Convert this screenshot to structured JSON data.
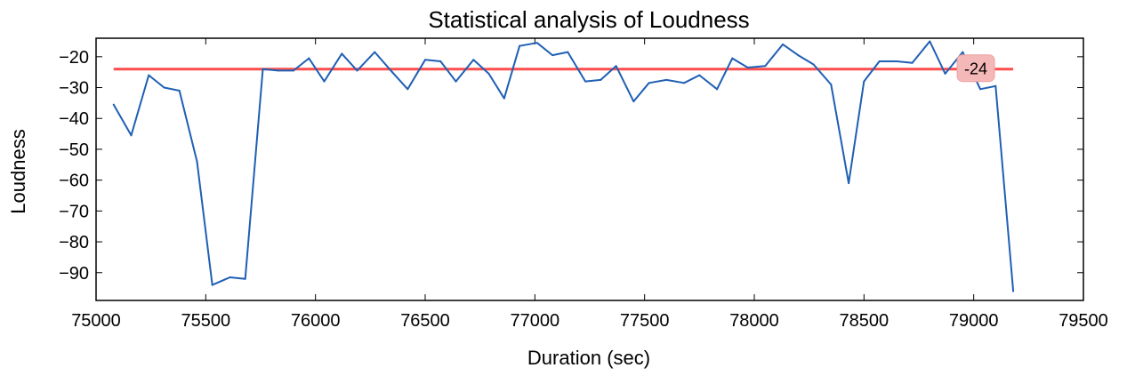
{
  "chart_data": {
    "type": "line",
    "title": "Statistical analysis of Loudness",
    "xlabel": "Duration (sec)",
    "ylabel": "Loudness",
    "xlim": [
      75000,
      79500
    ],
    "ylim": [
      -99,
      -14
    ],
    "xticks": [
      75000,
      75500,
      76000,
      76500,
      77000,
      77500,
      78000,
      78500,
      79000,
      79500
    ],
    "yticks": [
      -20,
      -30,
      -40,
      -50,
      -60,
      -70,
      -80,
      -90
    ],
    "grid": false,
    "series": [
      {
        "color": "#1f5fb4",
        "x": [
          75080,
          75160,
          75240,
          75310,
          75380,
          75460,
          75530,
          75610,
          75680,
          75760,
          75830,
          75900,
          75970,
          76040,
          76120,
          76190,
          76270,
          76350,
          76420,
          76500,
          76570,
          76640,
          76720,
          76790,
          76860,
          76930,
          77010,
          77080,
          77150,
          77230,
          77300,
          77370,
          77450,
          77520,
          77600,
          77680,
          77750,
          77830,
          77900,
          77970,
          78050,
          78130,
          78200,
          78270,
          78350,
          78430,
          78500,
          78570,
          78650,
          78720,
          78800,
          78870,
          78950,
          79030,
          79100,
          79180
        ],
        "values": [
          -35.5,
          -45.5,
          -26,
          -30,
          -31,
          -54,
          -94,
          -91.5,
          -92,
          -24,
          -24.5,
          -24.5,
          -20.5,
          -28,
          -19,
          -24.5,
          -18.5,
          -25,
          -30.5,
          -21,
          -21.5,
          -28,
          -21,
          -25.5,
          -33.5,
          -16.5,
          -15.5,
          -19.5,
          -18.5,
          -28,
          -27.5,
          -23,
          -34.5,
          -28.5,
          -27.5,
          -28.5,
          -26,
          -30.5,
          -20.5,
          -23.5,
          -23,
          -16,
          -19.5,
          -22.5,
          -29,
          -61,
          -28,
          -21.5,
          -21.5,
          -22,
          -15,
          -25.5,
          -18.5,
          -30.5,
          -29.5,
          -96
        ]
      }
    ],
    "reference_line": {
      "value": -24,
      "label": "-24",
      "color": "#ff4d4d",
      "x_start": 75080,
      "x_end": 79180
    }
  }
}
